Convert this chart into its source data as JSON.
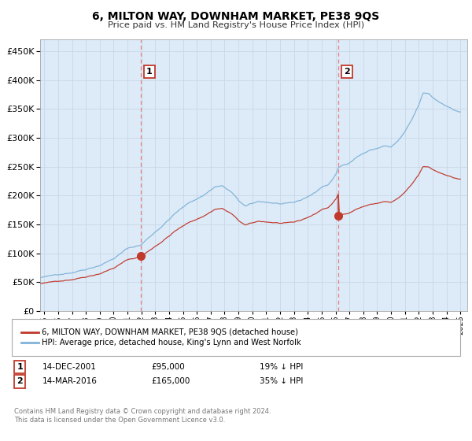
{
  "title": "6, MILTON WAY, DOWNHAM MARKET, PE38 9QS",
  "subtitle": "Price paid vs. HM Land Registry's House Price Index (HPI)",
  "legend_line1": "6, MILTON WAY, DOWNHAM MARKET, PE38 9QS (detached house)",
  "legend_line2": "HPI: Average price, detached house, King's Lynn and West Norfolk",
  "annotation1_label": "1",
  "annotation1_date": "14-DEC-2001",
  "annotation1_price": "£95,000",
  "annotation1_hpi": "19% ↓ HPI",
  "annotation2_label": "2",
  "annotation2_date": "14-MAR-2016",
  "annotation2_price": "£165,000",
  "annotation2_hpi": "35% ↓ HPI",
  "footnote_line1": "Contains HM Land Registry data © Crown copyright and database right 2024.",
  "footnote_line2": "This data is licensed under the Open Government Licence v3.0.",
  "red_line_color": "#c0392b",
  "blue_line_color": "#7fb3d8",
  "background_color": "#ddeaf7",
  "grid_color": "#c8d8e8",
  "vline_color": "#e88080",
  "sale1_year": 2001.96,
  "sale1_price": 95000,
  "sale2_year": 2016.21,
  "sale2_price": 165000,
  "ylim": [
    0,
    470000
  ],
  "xlim_start": 1994.7,
  "xlim_end": 2025.5
}
